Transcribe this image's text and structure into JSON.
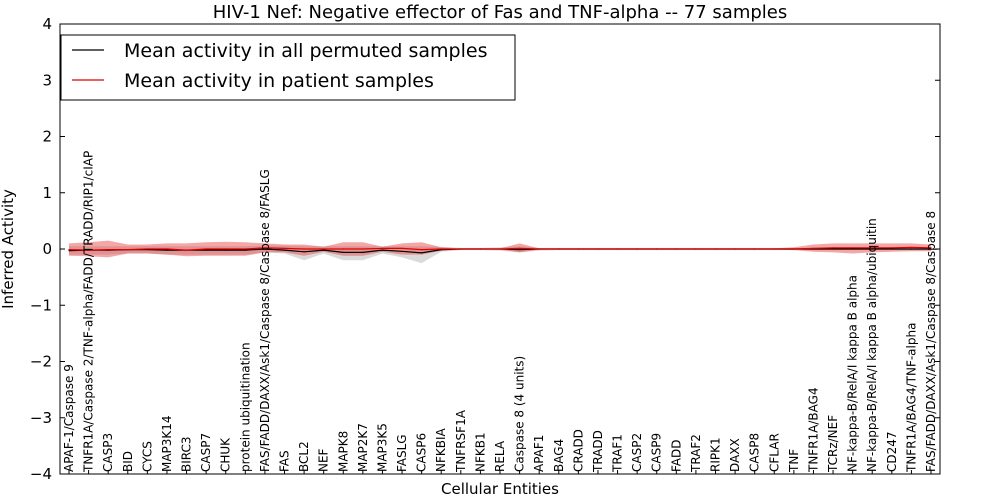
{
  "chart_data": {
    "type": "line",
    "title": "HIV-1 Nef: Negative effector of Fas and TNF-alpha -- 77 samples",
    "xlabel": "Cellular Entities",
    "ylabel": "Inferred Activity",
    "ylim": [
      -4,
      4
    ],
    "yticks": [
      "4",
      "3",
      "2",
      "1",
      "0",
      "−1",
      "−2",
      "−3",
      "−4"
    ],
    "ytick_values": [
      4,
      3,
      2,
      1,
      0,
      -1,
      -2,
      -3,
      -4
    ],
    "legend_position": "top-left",
    "categories": [
      "APAF-1/Caspase 9",
      "TNFR1A/Caspase 2/TNF-alpha/FADD/TRADD/RIP1/cIAP",
      "CASP3",
      "BID",
      "CYCS",
      "MAP3K14",
      "BIRC3",
      "CASP7",
      "CHUK",
      "protein ubiquitination",
      "FAS/FADD/DAXX/Ask1/Caspase 8/Caspase 8/FASLG",
      "FAS",
      "BCL2",
      "NEF",
      "MAPK8",
      "MAP2K7",
      "MAP3K5",
      "FASLG",
      "CASP6",
      "NFKBIA",
      "TNFRSF1A",
      "NFKB1",
      "RELA",
      "Caspase 8 (4 units)",
      "APAF1",
      "BAG4",
      "CRADD",
      "TRADD",
      "TRAF1",
      "CASP2",
      "CASP9",
      "FADD",
      "TRAF2",
      "RIPK1",
      "DAXX",
      "CASP8",
      "CFLAR",
      "TNF",
      "TNFR1A/BAG4",
      "TCRz/NEF",
      "NF-kappa-B/RelA/I kappa B alpha",
      "NF-kappa-B/RelA/I kappa B alpha/ubiquitin",
      "CD247",
      "TNFR1A/BAG4/TNF-alpha",
      "FAS/FADD/DAXX/Ask1/Caspase 8/Caspase 8"
    ],
    "series": [
      {
        "name": "Mean activity in all permuted samples",
        "color": "#000000",
        "values": [
          -0.03,
          -0.02,
          -0.02,
          -0.01,
          -0.01,
          -0.02,
          -0.02,
          -0.02,
          -0.02,
          -0.02,
          0.0,
          -0.02,
          -0.05,
          -0.02,
          -0.06,
          -0.06,
          -0.02,
          -0.04,
          -0.07,
          -0.01,
          0.0,
          0.0,
          0.0,
          -0.01,
          0.0,
          0.0,
          0.0,
          0.0,
          0.0,
          0.0,
          0.0,
          0.0,
          0.0,
          0.0,
          0.0,
          0.0,
          0.0,
          0.0,
          0.0,
          0.0,
          0.0,
          0.0,
          0.0,
          0.0,
          0.0
        ],
        "band_low": [
          -0.1,
          -0.1,
          -0.1,
          -0.08,
          -0.08,
          -0.1,
          -0.1,
          -0.1,
          -0.1,
          -0.1,
          -0.06,
          -0.08,
          -0.2,
          -0.08,
          -0.2,
          -0.2,
          -0.08,
          -0.15,
          -0.25,
          -0.05,
          -0.02,
          -0.02,
          -0.03,
          -0.06,
          -0.03,
          -0.02,
          -0.02,
          -0.02,
          -0.02,
          -0.02,
          -0.02,
          -0.02,
          -0.02,
          -0.02,
          -0.02,
          -0.02,
          -0.02,
          -0.02,
          -0.02,
          -0.02,
          -0.02,
          -0.02,
          -0.02,
          -0.02,
          -0.02
        ],
        "band_high": [
          0.05,
          0.05,
          0.05,
          0.05,
          0.05,
          0.05,
          0.05,
          0.05,
          0.05,
          0.05,
          0.06,
          0.06,
          0.05,
          0.05,
          0.05,
          0.05,
          0.05,
          0.05,
          0.05,
          0.04,
          0.02,
          0.02,
          0.03,
          0.05,
          0.02,
          0.02,
          0.02,
          0.02,
          0.02,
          0.02,
          0.02,
          0.02,
          0.02,
          0.02,
          0.02,
          0.02,
          0.02,
          0.02,
          0.02,
          0.02,
          0.02,
          0.02,
          0.02,
          0.02,
          0.02
        ]
      },
      {
        "name": "Mean activity in patient samples",
        "color": "#e00000",
        "values": [
          -0.01,
          -0.02,
          -0.01,
          -0.01,
          0.0,
          0.0,
          -0.02,
          0.0,
          0.0,
          0.0,
          0.02,
          0.01,
          0.0,
          0.0,
          0.0,
          0.0,
          0.01,
          0.01,
          -0.01,
          0.0,
          0.0,
          0.0,
          0.0,
          0.01,
          0.0,
          0.0,
          0.0,
          0.0,
          0.0,
          0.0,
          0.0,
          0.0,
          0.0,
          0.0,
          0.0,
          0.0,
          0.0,
          0.0,
          0.01,
          0.02,
          0.02,
          0.02,
          0.02,
          0.03,
          0.02
        ],
        "band_low": [
          -0.12,
          -0.13,
          -0.15,
          -0.08,
          -0.08,
          -0.1,
          -0.13,
          -0.12,
          -0.12,
          -0.12,
          -0.06,
          -0.06,
          -0.12,
          -0.05,
          -0.12,
          -0.12,
          -0.05,
          -0.1,
          -0.1,
          -0.03,
          -0.01,
          -0.01,
          -0.01,
          -0.06,
          -0.01,
          -0.01,
          -0.01,
          -0.01,
          -0.01,
          -0.01,
          -0.01,
          -0.01,
          -0.01,
          -0.01,
          -0.01,
          -0.01,
          -0.01,
          -0.02,
          -0.05,
          -0.06,
          -0.08,
          -0.06,
          -0.05,
          -0.04,
          -0.04
        ],
        "band_high": [
          0.1,
          0.12,
          0.15,
          0.08,
          0.08,
          0.1,
          0.1,
          0.12,
          0.13,
          0.12,
          0.1,
          0.08,
          0.08,
          0.04,
          0.12,
          0.12,
          0.04,
          0.1,
          0.12,
          0.03,
          0.01,
          0.01,
          0.01,
          0.1,
          0.01,
          0.01,
          0.01,
          0.01,
          0.01,
          0.01,
          0.01,
          0.01,
          0.01,
          0.01,
          0.01,
          0.01,
          0.01,
          0.03,
          0.08,
          0.1,
          0.1,
          0.1,
          0.1,
          0.1,
          0.08
        ]
      }
    ]
  }
}
